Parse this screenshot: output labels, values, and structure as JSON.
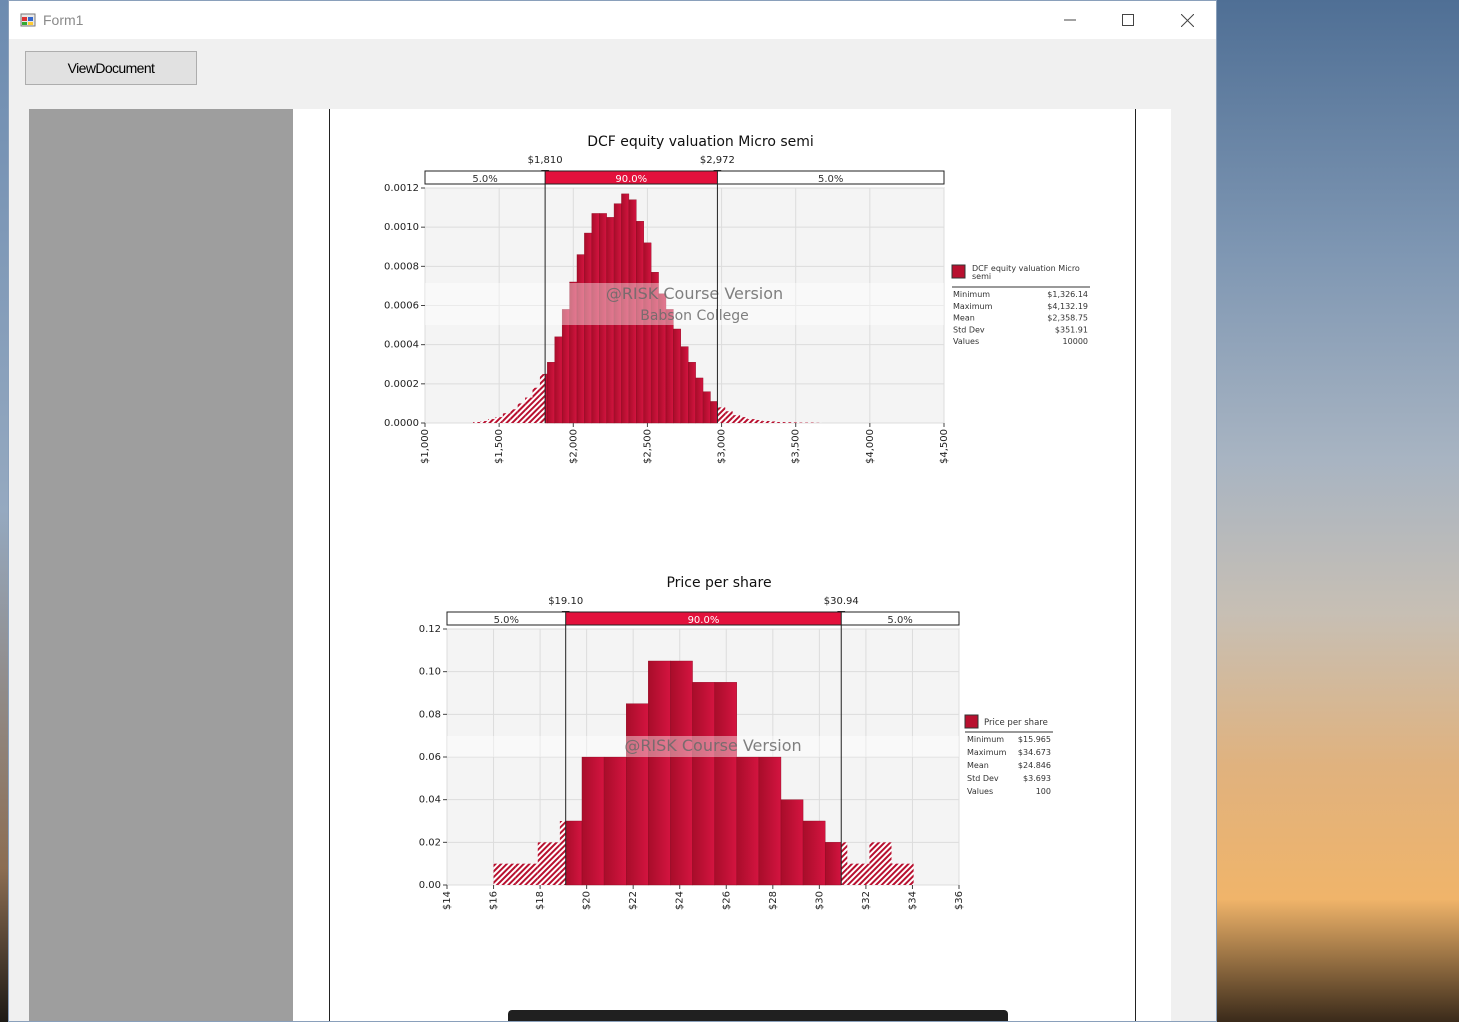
{
  "window": {
    "title": "Form1",
    "icon": "winforms-app-icon"
  },
  "toolbar": {
    "view_document_label": "ViewDocument"
  },
  "colors": {
    "accent": "#e3113c",
    "bar": "#b8102f",
    "bar_light": "#d2123a",
    "page_bg": "#9e9e9e"
  },
  "chart_data": [
    {
      "type": "bar",
      "title": "DCF equity valuation Micro semi",
      "xlim": [
        1000,
        4500
      ],
      "ylim": [
        0,
        0.0012
      ],
      "y_ticks": [
        "0.0012",
        "0.0010",
        "0.0008",
        "0.0006",
        "0.0004",
        "0.0002",
        "0.0000"
      ],
      "x_ticks": [
        "$1,000",
        "$1,500",
        "$2,000",
        "$2,500",
        "$3,000",
        "$3,500",
        "$4,000",
        "$4,500"
      ],
      "delimiters": {
        "left": "$1,810",
        "right": "$2,972",
        "left_value": 1810,
        "right_value": 2972
      },
      "bands": {
        "left": "5.0%",
        "middle": "90.0%",
        "right": "5.0%"
      },
      "bin_start": 1325,
      "bin_width": 50,
      "values": [
        5e-06,
        1e-05,
        2e-05,
        3e-05,
        5e-05,
        7e-05,
        0.0001,
        0.00013,
        0.00018,
        0.00025,
        0.00031,
        0.00044,
        0.00058,
        0.00072,
        0.00086,
        0.00097,
        0.00107,
        0.00107,
        0.00105,
        0.00112,
        0.00117,
        0.00114,
        0.00103,
        0.00092,
        0.00077,
        0.00066,
        0.00058,
        0.00048,
        0.00039,
        0.00031,
        0.00023,
        0.00016,
        0.00011,
        8e-05,
        6e-05,
        4e-05,
        3e-05,
        2e-05,
        1.5e-05,
        1e-05,
        8e-06,
        5e-06,
        4e-06,
        3e-06,
        2e-06,
        2e-06,
        1e-06
      ],
      "watermark": [
        "@RISK Course Version",
        "Babson College"
      ],
      "legend": {
        "series": "DCF equity valuation Micro semi",
        "stats": [
          {
            "label": "Minimum",
            "value": "$1,326.14"
          },
          {
            "label": "Maximum",
            "value": "$4,132.19"
          },
          {
            "label": "Mean",
            "value": "$2,358.75"
          },
          {
            "label": "Std Dev",
            "value": "$351.91"
          },
          {
            "label": "Values",
            "value": "10000"
          }
        ]
      }
    },
    {
      "type": "bar",
      "title": "Price per share",
      "xlim": [
        14,
        36
      ],
      "ylim": [
        0,
        0.12
      ],
      "y_ticks": [
        "0.12",
        "0.10",
        "0.08",
        "0.06",
        "0.04",
        "0.02",
        "0.00"
      ],
      "x_ticks": [
        "$14",
        "$16",
        "$18",
        "$20",
        "$22",
        "$24",
        "$26",
        "$28",
        "$30",
        "$32",
        "$34",
        "$36"
      ],
      "delimiters": {
        "left": "$19.10",
        "right": "$30.94",
        "left_value": 19.1,
        "right_value": 30.94
      },
      "bands": {
        "left": "5.0%",
        "middle": "90.0%",
        "right": "5.0%"
      },
      "bin_start": 16,
      "bin_width": 0.95,
      "values": [
        0.01,
        0.01,
        0.02,
        0.03,
        0.06,
        0.06,
        0.085,
        0.105,
        0.105,
        0.095,
        0.095,
        0.06,
        0.06,
        0.04,
        0.03,
        0.02,
        0.01,
        0.02,
        0.01
      ],
      "watermark": [
        "@RISK Course Version"
      ],
      "legend": {
        "series": "Price per share",
        "stats": [
          {
            "label": "Minimum",
            "value": "$15.965"
          },
          {
            "label": "Maximum",
            "value": "$34.673"
          },
          {
            "label": "Mean",
            "value": "$24.846"
          },
          {
            "label": "Std Dev",
            "value": "$3.693"
          },
          {
            "label": "Values",
            "value": "100"
          }
        ]
      }
    }
  ]
}
